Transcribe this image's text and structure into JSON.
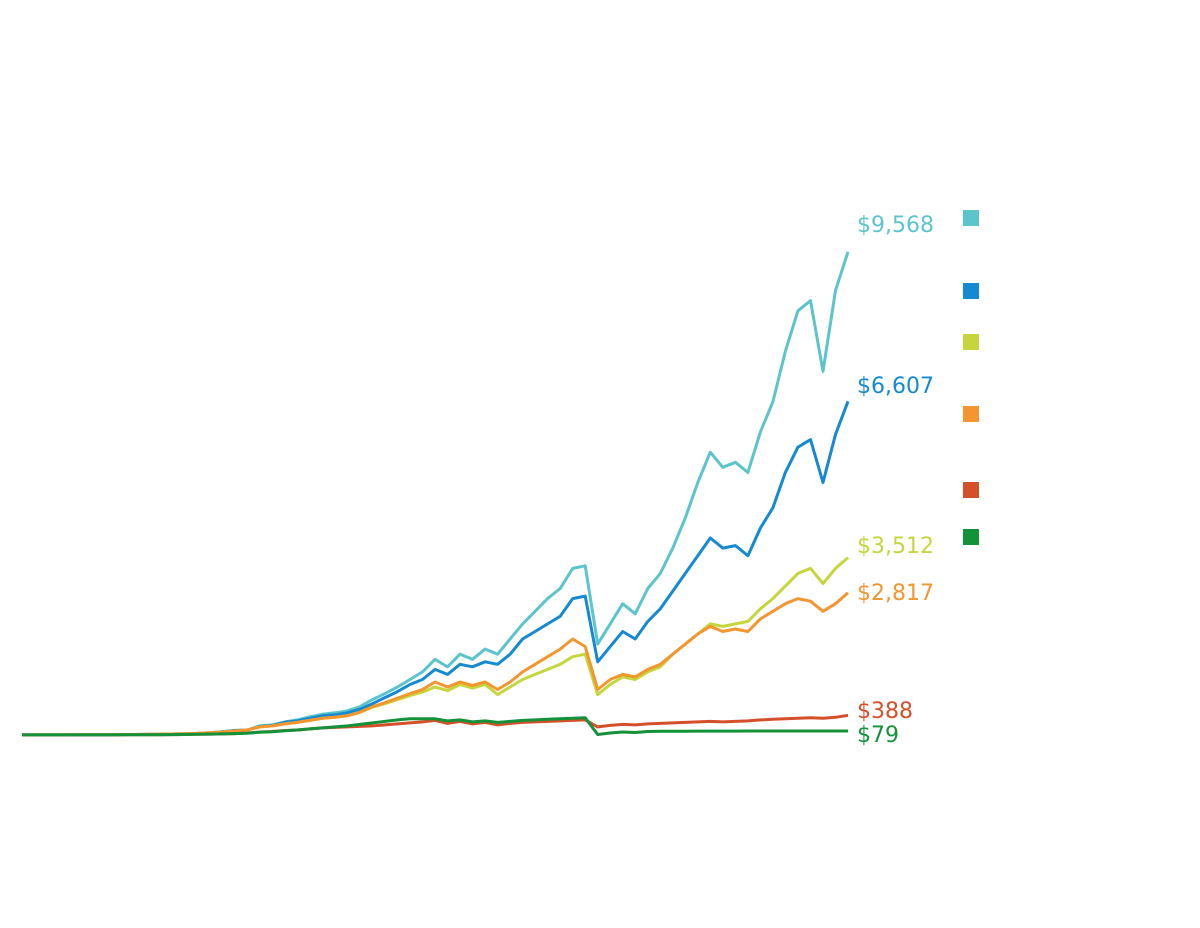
{
  "chart_data": {
    "type": "line",
    "title": "",
    "xlabel": "",
    "ylabel": "",
    "ylim": [
      0,
      10000
    ],
    "grid": false,
    "legend": "right",
    "series": [
      {
        "color": "#5bc4cc",
        "end_label": "$9,568",
        "values": [
          1,
          1,
          2,
          2,
          3,
          3,
          4,
          5,
          7,
          10,
          12,
          15,
          19,
          24,
          32,
          45,
          65,
          90,
          100,
          180,
          200,
          260,
          300,
          360,
          410,
          440,
          480,
          560,
          700,
          820,
          950,
          1100,
          1250,
          1500,
          1350,
          1600,
          1500,
          1700,
          1600,
          1900,
          2200,
          2450,
          2700,
          2900,
          3300,
          3350,
          1800,
          2200,
          2600,
          2400,
          2900,
          3200,
          3700,
          4300,
          5000,
          5600,
          5300,
          5400,
          5200,
          6000,
          6600,
          7600,
          8400,
          8600,
          7200,
          8800,
          9568
        ]
      },
      {
        "color": "#1589d1",
        "end_label": "$6,607",
        "values": [
          1,
          1,
          2,
          2,
          3,
          3,
          4,
          5,
          7,
          10,
          12,
          15,
          19,
          24,
          32,
          45,
          65,
          90,
          100,
          170,
          190,
          250,
          280,
          330,
          380,
          400,
          440,
          510,
          620,
          740,
          860,
          1000,
          1100,
          1300,
          1200,
          1400,
          1350,
          1450,
          1400,
          1600,
          1900,
          2050,
          2200,
          2350,
          2700,
          2750,
          1450,
          1750,
          2050,
          1900,
          2250,
          2500,
          2850,
          3200,
          3550,
          3900,
          3700,
          3750,
          3550,
          4100,
          4500,
          5200,
          5700,
          5850,
          5000,
          5950,
          6607
        ]
      },
      {
        "color": "#c4d63c",
        "end_label": "$3,512",
        "values": [
          1,
          1,
          2,
          2,
          3,
          3,
          4,
          5,
          7,
          10,
          12,
          15,
          19,
          24,
          32,
          45,
          60,
          80,
          100,
          160,
          180,
          220,
          250,
          290,
          330,
          350,
          380,
          450,
          550,
          620,
          700,
          780,
          850,
          950,
          880,
          1000,
          930,
          1000,
          800,
          950,
          1100,
          1200,
          1300,
          1400,
          1550,
          1600,
          800,
          1000,
          1150,
          1100,
          1250,
          1350,
          1600,
          1800,
          2000,
          2200,
          2150,
          2200,
          2250,
          2500,
          2700,
          2950,
          3200,
          3300,
          3000,
          3300,
          3512
        ]
      },
      {
        "color": "#f3962f",
        "end_label": "$2,817",
        "values": [
          1,
          1,
          2,
          2,
          3,
          3,
          4,
          5,
          7,
          10,
          12,
          15,
          19,
          24,
          32,
          45,
          60,
          80,
          100,
          160,
          180,
          220,
          250,
          290,
          330,
          350,
          380,
          450,
          560,
          640,
          730,
          820,
          900,
          1050,
          950,
          1050,
          980,
          1050,
          900,
          1050,
          1250,
          1400,
          1550,
          1700,
          1900,
          1750,
          900,
          1100,
          1200,
          1150,
          1300,
          1400,
          1600,
          1800,
          2000,
          2150,
          2050,
          2100,
          2050,
          2300,
          2450,
          2600,
          2700,
          2650,
          2450,
          2600,
          2817
        ]
      },
      {
        "color": "#d4502a",
        "end_label": "$388",
        "values": [
          1,
          1,
          1,
          1,
          1,
          1,
          2,
          2,
          3,
          4,
          5,
          6,
          8,
          10,
          13,
          17,
          22,
          28,
          40,
          60,
          70,
          90,
          100,
          120,
          140,
          150,
          160,
          170,
          180,
          200,
          220,
          240,
          260,
          290,
          230,
          270,
          220,
          250,
          200,
          230,
          250,
          260,
          270,
          280,
          290,
          300,
          160,
          190,
          210,
          200,
          220,
          230,
          240,
          250,
          260,
          270,
          260,
          270,
          280,
          300,
          310,
          320,
          330,
          340,
          330,
          350,
          388
        ]
      },
      {
        "color": "#14923a",
        "end_label": "$79",
        "values": [
          1,
          1,
          1,
          1,
          1,
          1,
          2,
          2,
          3,
          4,
          5,
          6,
          8,
          10,
          13,
          17,
          22,
          28,
          35,
          55,
          65,
          85,
          100,
          120,
          140,
          160,
          180,
          210,
          240,
          270,
          300,
          320,
          320,
          320,
          280,
          300,
          260,
          280,
          250,
          270,
          290,
          300,
          310,
          320,
          330,
          340,
          10,
          40,
          60,
          50,
          70,
          75,
          75,
          76,
          77,
          78,
          78,
          78,
          79,
          79,
          79,
          79,
          79,
          79,
          79,
          79,
          79
        ]
      }
    ]
  }
}
